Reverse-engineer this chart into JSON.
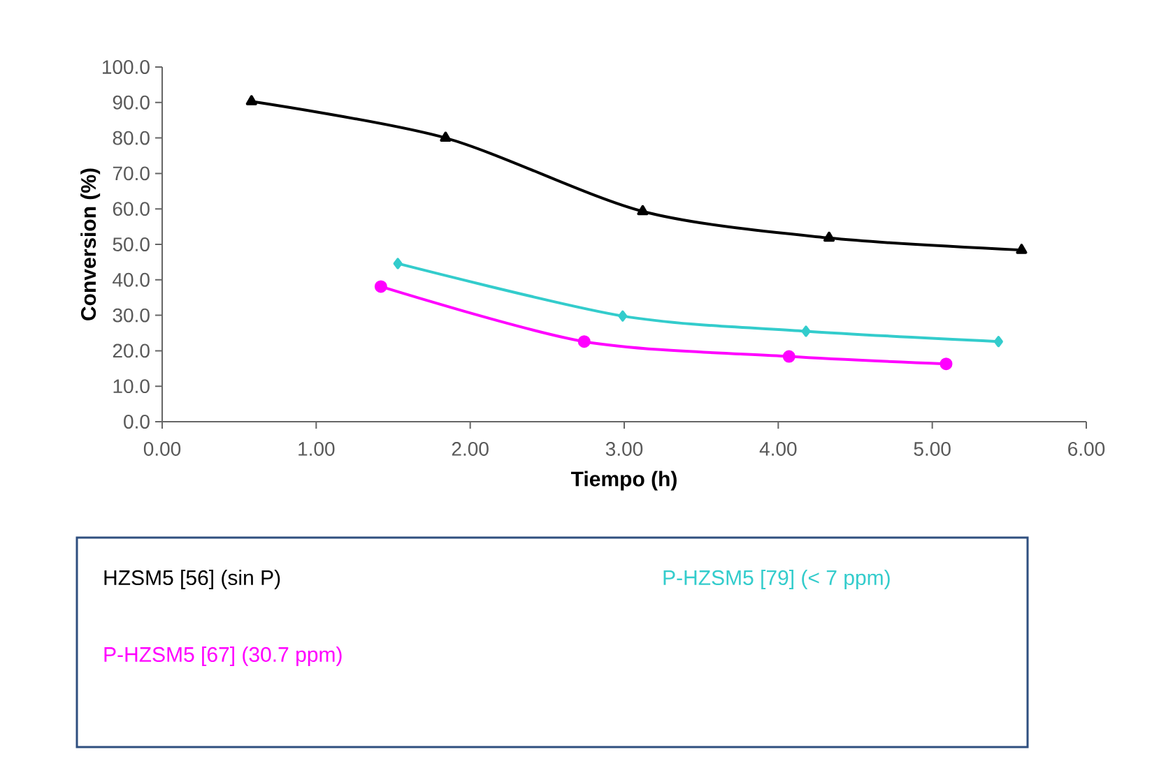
{
  "chart_data": {
    "type": "line",
    "xlabel": "Tiempo (h)",
    "ylabel": "Conversion (%)",
    "xlim": [
      0,
      6
    ],
    "ylim": [
      0,
      100
    ],
    "xticks": [
      {
        "value": 0,
        "label": "0.00"
      },
      {
        "value": 1,
        "label": "1.00"
      },
      {
        "value": 2,
        "label": "2.00"
      },
      {
        "value": 3,
        "label": "3.00"
      },
      {
        "value": 4,
        "label": "4.00"
      },
      {
        "value": 5,
        "label": "5.00"
      },
      {
        "value": 6,
        "label": "6.00"
      }
    ],
    "yticks": [
      {
        "value": 0,
        "label": "0.0"
      },
      {
        "value": 10,
        "label": "10.0"
      },
      {
        "value": 20,
        "label": "20.0"
      },
      {
        "value": 30,
        "label": "30.0"
      },
      {
        "value": 40,
        "label": "40.0"
      },
      {
        "value": 50,
        "label": "50.0"
      },
      {
        "value": 60,
        "label": "60.0"
      },
      {
        "value": 70,
        "label": "70.0"
      },
      {
        "value": 80,
        "label": "80.0"
      },
      {
        "value": 90,
        "label": "90.0"
      },
      {
        "value": 100,
        "label": "100.0"
      }
    ],
    "grid": false,
    "legend": "bottom",
    "line_style": "solid",
    "series": [
      {
        "name": "HZSM5 [56] (sin P)",
        "color": "#000000",
        "marker": "triangle",
        "x": [
          0.58,
          1.84,
          3.12,
          4.33,
          5.58
        ],
        "values": [
          90.3,
          80.0,
          59.3,
          51.8,
          48.4
        ]
      },
      {
        "name": "P-HZSM5 [79] (< 7 ppm)",
        "color": "#33cccc",
        "marker": "diamond",
        "x": [
          1.53,
          2.99,
          4.18,
          5.43
        ],
        "values": [
          44.6,
          29.8,
          25.5,
          22.6
        ]
      },
      {
        "name": "P-HZSM5 [67] (30.7 ppm)",
        "color": "#ff00ff",
        "marker": "circle",
        "x": [
          1.42,
          2.74,
          4.07,
          5.09
        ],
        "values": [
          38.1,
          22.6,
          18.4,
          16.3
        ]
      }
    ]
  }
}
